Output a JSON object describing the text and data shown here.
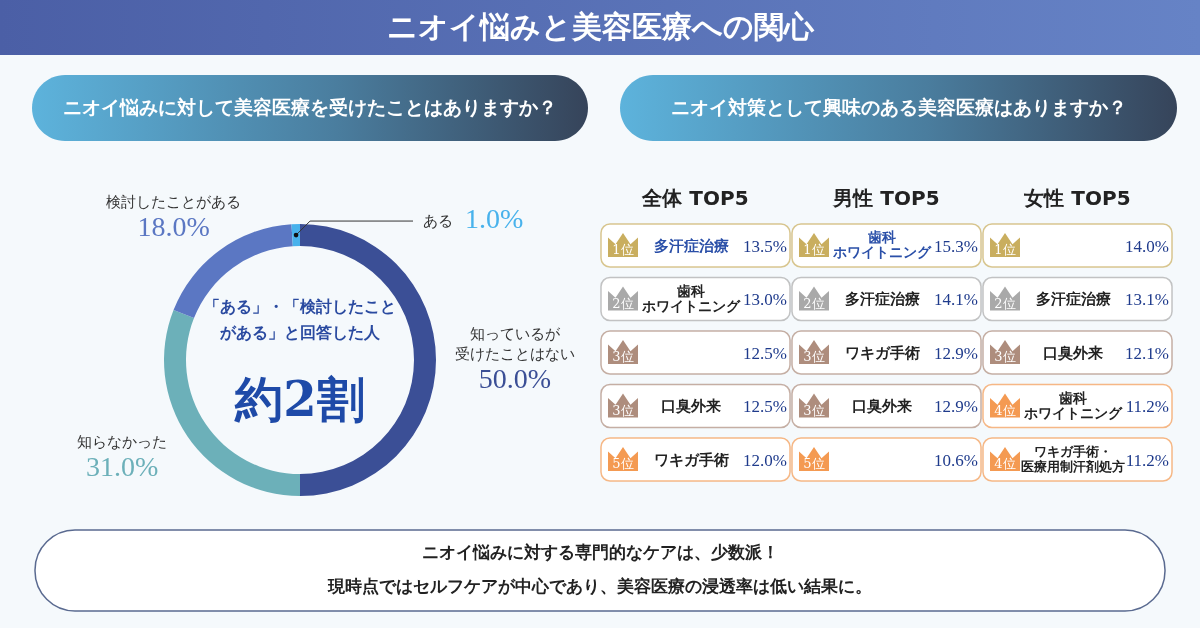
{
  "chart_data": [
    {
      "type": "other",
      "title": "ニオイ悩みと美容医療への関心"
    },
    {
      "type": "donut",
      "title": "ニオイ悩みに対して美容医療を受けたことはありますか？",
      "categories": [
        "知っているが受けたことはない",
        "知らなかった",
        "検討したことがある",
        "ある"
      ],
      "values": [
        50.0,
        31.0,
        18.0,
        1.0
      ],
      "value_labels": [
        "50.0%",
        "31.0%",
        "18.0%",
        "1.0%"
      ],
      "colors": [
        "#3b4f96",
        "#6cb0b9",
        "#5b77c3",
        "#48b2ec"
      ],
      "annotations": [
        "「ある」・「検討したことがある」と回答した人",
        "約2割"
      ]
    },
    {
      "type": "other",
      "title": "ニオイ対策として興味のある美容医療はありますか？"
    },
    {
      "type": "other",
      "title": "全体 TOP5",
      "categories": [
        "多汗症治療",
        "歯科ホワイトニング",
        null,
        "口臭外来",
        "ワキガ手術"
      ],
      "values": [
        13.5,
        13.0,
        12.5,
        12.5,
        12.0
      ],
      "value_labels": [
        "13.5%",
        "13.0%",
        "12.5%",
        "12.5%",
        "12.0%"
      ],
      "colors": [
        "#c9ae5f",
        "#a9a9a9",
        "#ae8d7d",
        "#ae8d7d",
        "#f49a52"
      ],
      "annotations": [
        "1位",
        "2位",
        "3位",
        "3位",
        "5位"
      ]
    },
    {
      "type": "other",
      "title": "男性 TOP5",
      "categories": [
        "歯科ホワイトニング",
        "多汗症治療",
        "ワキガ手術",
        "口臭外来",
        null
      ],
      "values": [
        15.3,
        14.1,
        12.9,
        12.9,
        10.6
      ],
      "value_labels": [
        "15.3%",
        "14.1%",
        "12.9%",
        "12.9%",
        "10.6%"
      ],
      "colors": [
        "#c9ae5f",
        "#a9a9a9",
        "#ae8d7d",
        "#ae8d7d",
        "#f49a52"
      ],
      "annotations": [
        "1位",
        "2位",
        "3位",
        "3位",
        "5位"
      ]
    },
    {
      "type": "other",
      "title": "女性 TOP5",
      "categories": [
        null,
        "多汗症治療",
        "口臭外来",
        "歯科ホワイトニング",
        "ワキガ手術・医療用制汗剤処方"
      ],
      "values": [
        14.0,
        13.1,
        12.1,
        11.2,
        11.2
      ],
      "value_labels": [
        "14.0%",
        "13.1%",
        "12.1%",
        "11.2%",
        "11.2%"
      ],
      "colors": [
        "#c9ae5f",
        "#a9a9a9",
        "#ae8d7d",
        "#f49a52",
        "#f49a52"
      ],
      "annotations": [
        "1位",
        "2位",
        "3位",
        "4位",
        "4位"
      ]
    },
    {
      "type": "other",
      "annotations": [
        "ニオイ悩みに対する専門的なケアは、少数派！",
        "現時点ではセルフケアが中心であり、美容医療の浸透率は低い結果に。"
      ]
    }
  ]
}
